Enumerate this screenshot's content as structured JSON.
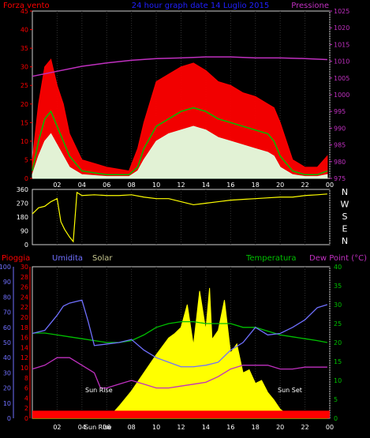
{
  "chart_data": [
    {
      "type": "line",
      "title": "24 hour graph date 14 Luglio 2015",
      "left_axis_label": "Forza vento",
      "right_axis_label": "Pressione",
      "x_ticks": [
        "02",
        "04",
        "06",
        "08",
        "10",
        "12",
        "14",
        "16",
        "18",
        "20",
        "22",
        "00"
      ],
      "left_ticks": [
        0,
        5,
        10,
        15,
        20,
        25,
        30,
        35,
        40,
        45
      ],
      "right_ticks": [
        975,
        980,
        985,
        990,
        995,
        1000,
        1005,
        1010,
        1015,
        1020,
        1025
      ],
      "ylim_left": [
        0,
        45
      ],
      "ylim_right": [
        975,
        1025
      ],
      "colors": {
        "gust": "#ff0000",
        "avg": "#00c000",
        "wind": "#e0ffe0",
        "pressure": "#c030c0"
      },
      "pressure": {
        "x": [
          0,
          2,
          4,
          6,
          8,
          10,
          12,
          14,
          16,
          18,
          20,
          22,
          23.8
        ],
        "values": [
          1005.5,
          1007,
          1008.5,
          1009.5,
          1010.3,
          1010.8,
          1011,
          1011.3,
          1011.3,
          1011,
          1011,
          1010.8,
          1010.5
        ]
      },
      "gust": {
        "x": [
          0,
          0.5,
          1,
          1.5,
          2,
          2.5,
          3,
          4,
          6,
          7.8,
          8.5,
          9,
          10,
          11,
          12,
          13,
          14,
          15,
          16,
          17,
          18,
          19,
          19.5,
          20,
          21,
          22,
          23,
          23.8
        ],
        "values": [
          5,
          20,
          30,
          32,
          25,
          20,
          12,
          5,
          3,
          2,
          8,
          15,
          26,
          28,
          30,
          31,
          29,
          26,
          25,
          23,
          22,
          20,
          19,
          15,
          5,
          3,
          3,
          6
        ]
      },
      "avg": {
        "x": [
          0,
          0.5,
          1,
          1.5,
          2,
          2.5,
          3,
          4,
          6,
          7.8,
          8.5,
          9,
          10,
          11,
          12,
          13,
          14,
          15,
          16,
          17,
          18,
          19,
          19.5,
          20,
          21,
          22,
          23,
          23.8
        ],
        "values": [
          2,
          10,
          16,
          18,
          14,
          10,
          6,
          2,
          1,
          1,
          3,
          8,
          14,
          16,
          18,
          19,
          18,
          16,
          15,
          14,
          13,
          12,
          10,
          6,
          2,
          1,
          1,
          2
        ]
      },
      "wind": {
        "x": [
          0,
          0.5,
          1,
          1.5,
          2,
          2.5,
          3,
          4,
          6,
          7.8,
          8.5,
          9,
          10,
          11,
          12,
          13,
          14,
          15,
          16,
          17,
          18,
          19,
          19.5,
          20,
          21,
          22,
          23,
          23.8
        ],
        "values": [
          1,
          6,
          10,
          12,
          9,
          6,
          3,
          1,
          0.5,
          0.5,
          2,
          5,
          10,
          12,
          13,
          14,
          13,
          11,
          10,
          9,
          8,
          7,
          6,
          3,
          1,
          0.5,
          0.5,
          1
        ]
      }
    },
    {
      "type": "line",
      "x_ticks": [
        "02",
        "04",
        "06",
        "08",
        "10",
        "12",
        "14",
        "16",
        "18",
        "20",
        "22",
        "00"
      ],
      "left_ticks": [
        0,
        90,
        180,
        270,
        360
      ],
      "right_labels": [
        "N",
        "W",
        "S",
        "E",
        "N"
      ],
      "ylim": [
        0,
        360
      ],
      "colors": {
        "direction": "#ffff00"
      },
      "direction": {
        "x": [
          0,
          0.5,
          1,
          1.5,
          2,
          2.3,
          2.6,
          3,
          3.3,
          3.6,
          4,
          5,
          6,
          7,
          8,
          9,
          10,
          11,
          12,
          13,
          14,
          15,
          16,
          17,
          18,
          19,
          20,
          21,
          22,
          23,
          23.8
        ],
        "values": [
          200,
          240,
          250,
          280,
          300,
          150,
          100,
          50,
          20,
          340,
          320,
          325,
          320,
          320,
          325,
          310,
          300,
          300,
          280,
          260,
          270,
          280,
          290,
          295,
          300,
          305,
          310,
          310,
          320,
          325,
          330
        ]
      }
    },
    {
      "type": "line",
      "legend": [
        "Pioggia",
        "Umidita",
        "Solar",
        "Temperatura",
        "Dew Point (°C)"
      ],
      "x_ticks": [
        "02",
        "04",
        "Sun Rise",
        "06",
        "08",
        "10",
        "12",
        "14",
        "16",
        "18",
        "20",
        "22",
        "00"
      ],
      "humidity_ticks": [
        0,
        10,
        20,
        30,
        40,
        50,
        60,
        70,
        80,
        90,
        100
      ],
      "rain_ticks": [
        0,
        2,
        4,
        6,
        8,
        10,
        12,
        14,
        16,
        18,
        20,
        22,
        24,
        26,
        28,
        30
      ],
      "temp_ticks": [
        0,
        5,
        10,
        15,
        20,
        25,
        30,
        35,
        40
      ],
      "annotations": [
        "Sun Rise",
        "Sun Set"
      ],
      "colors": {
        "rain": "#ff0000",
        "humidity": "#7070ff",
        "solar": "#ffff00",
        "temperature": "#00c000",
        "dewpoint": "#c030c0"
      },
      "temperature": {
        "x": [
          0,
          1,
          2,
          3,
          4,
          5,
          6,
          7,
          8,
          9,
          10,
          11,
          12,
          13,
          14,
          15,
          16,
          17,
          18,
          19,
          20,
          21,
          22,
          23,
          23.8
        ],
        "values": [
          22.5,
          22.5,
          22,
          21.5,
          21,
          20.5,
          20,
          20,
          20.5,
          22,
          24,
          25,
          25.5,
          25.5,
          25,
          25,
          25,
          24,
          24,
          23,
          22,
          21.5,
          21,
          20.5,
          20
        ]
      },
      "humidity": {
        "x": [
          0,
          1,
          2,
          2.5,
          3,
          4,
          4.5,
          5,
          6,
          7,
          8,
          9,
          10,
          11,
          12,
          13,
          14,
          15,
          16,
          17,
          18,
          19,
          20,
          21,
          22,
          23,
          23.8
        ],
        "values": [
          56,
          58,
          68,
          74,
          76,
          78,
          64,
          48,
          49,
          50,
          52,
          45,
          40,
          37,
          34,
          34,
          35,
          37,
          45,
          50,
          60,
          55,
          56,
          60,
          65,
          73,
          75
        ]
      },
      "dewpoint": {
        "x": [
          0,
          1,
          1.5,
          2,
          3,
          4,
          5,
          5.5,
          6,
          7,
          8,
          9,
          10,
          11,
          12,
          13,
          14,
          15,
          16,
          17,
          18,
          19,
          20,
          21,
          22,
          23,
          23.8
        ],
        "values": [
          13,
          14,
          15,
          16,
          16,
          14,
          12,
          8,
          8,
          9,
          10,
          9,
          8,
          8,
          8.5,
          9,
          9.5,
          11,
          13,
          14,
          14,
          14,
          13,
          13,
          13.5,
          13.5,
          13.5
        ]
      },
      "solar": {
        "x": [
          0,
          4.5,
          5,
          5.5,
          6,
          6.5,
          7,
          8,
          9,
          10,
          11,
          11.5,
          12,
          12.5,
          13,
          13.5,
          14,
          14.3,
          14.5,
          15,
          15.5,
          16,
          16.5,
          17,
          17.5,
          18,
          18.5,
          19,
          19.5,
          20,
          21,
          23.8
        ],
        "values": [
          0,
          0,
          0,
          5,
          15,
          35,
          80,
          180,
          300,
          420,
          530,
          560,
          600,
          750,
          480,
          840,
          580,
          860,
          520,
          580,
          780,
          430,
          490,
          300,
          320,
          230,
          250,
          170,
          120,
          60,
          0,
          0
        ]
      },
      "solar_max": 1000,
      "rain_level": 1.5
    }
  ]
}
